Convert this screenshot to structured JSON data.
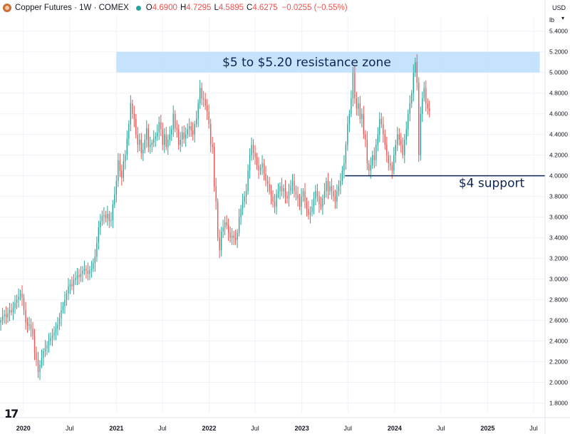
{
  "header": {
    "symbol": "Copper Futures",
    "interval": "1W",
    "exchange": "COMEX",
    "o_label": "O",
    "o": "4.6900",
    "h_label": "H",
    "h": "4.7295",
    "l_label": "L",
    "l": "4.5895",
    "c_label": "C",
    "c": "4.6275",
    "change": "−0.0255 (−0.55%)"
  },
  "currency": "USD",
  "unit": "lb",
  "colors": {
    "up": "#26a69a",
    "down": "#ef5350",
    "zone": "#bbdefb",
    "annotation": "#0d2556",
    "text": "#131722"
  },
  "chart_data": {
    "type": "candlestick",
    "title": "Copper Futures · 1W · COMEX",
    "ylim": [
      1.7,
      5.55
    ],
    "yticks": [
      1.8,
      2.0,
      2.2,
      2.4,
      2.6,
      2.8,
      3.0,
      3.2,
      3.4,
      3.6,
      3.8,
      4.0,
      4.2,
      4.4,
      4.6,
      4.8,
      5.0,
      5.2,
      5.4
    ],
    "ytick_labels": [
      "1.8000",
      "2.0000",
      "2.2000",
      "2.4000",
      "2.6000",
      "2.8000",
      "3.0000",
      "3.2000",
      "3.4000",
      "3.6000",
      "3.8000",
      "4.0000",
      "4.2000",
      "4.4000",
      "4.6000",
      "4.8000",
      "5.0000",
      "5.2000",
      "5.4000"
    ],
    "xlim": [
      "2019-10-01",
      "2025-08-15"
    ],
    "xticks": [
      {
        "date": "2020-01-01",
        "label": "2020",
        "bold": true
      },
      {
        "date": "2020-07-01",
        "label": "Jul",
        "bold": false
      },
      {
        "date": "2021-01-01",
        "label": "2021",
        "bold": true
      },
      {
        "date": "2021-07-01",
        "label": "Jul",
        "bold": false
      },
      {
        "date": "2022-01-01",
        "label": "2022",
        "bold": true
      },
      {
        "date": "2022-07-01",
        "label": "Jul",
        "bold": false
      },
      {
        "date": "2023-01-01",
        "label": "2023",
        "bold": true
      },
      {
        "date": "2023-07-01",
        "label": "Jul",
        "bold": false
      },
      {
        "date": "2024-01-01",
        "label": "2024",
        "bold": true
      },
      {
        "date": "2024-07-01",
        "label": "Jul",
        "bold": false
      },
      {
        "date": "2025-01-01",
        "label": "2025",
        "bold": true
      },
      {
        "date": "2025-07-01",
        "label": "Jul",
        "bold": false
      }
    ],
    "closes_weekly_start": "2019-10-04",
    "closes": [
      2.6,
      2.64,
      2.66,
      2.63,
      2.67,
      2.7,
      2.68,
      2.72,
      2.77,
      2.8,
      2.83,
      2.86,
      2.82,
      2.7,
      2.58,
      2.55,
      2.56,
      2.52,
      2.45,
      2.29,
      2.22,
      2.1,
      2.17,
      2.24,
      2.3,
      2.33,
      2.36,
      2.4,
      2.43,
      2.45,
      2.48,
      2.52,
      2.56,
      2.62,
      2.7,
      2.74,
      2.8,
      2.86,
      2.93,
      2.95,
      2.93,
      2.99,
      3.01,
      3.04,
      3.02,
      3.05,
      3.08,
      3.1,
      3.08,
      3.05,
      3.09,
      3.1,
      3.15,
      3.22,
      3.35,
      3.5,
      3.56,
      3.61,
      3.62,
      3.59,
      3.63,
      3.56,
      3.57,
      3.72,
      3.82,
      3.95,
      4.15,
      4.05,
      3.98,
      4.14,
      4.2,
      4.36,
      4.5,
      4.7,
      4.6,
      4.55,
      4.4,
      4.3,
      4.35,
      4.22,
      4.25,
      4.35,
      4.46,
      4.28,
      4.3,
      4.32,
      4.36,
      4.38,
      4.42,
      4.52,
      4.45,
      4.3,
      4.4,
      4.28,
      4.35,
      4.4,
      4.45,
      4.6,
      4.46,
      4.45,
      4.3,
      4.35,
      4.42,
      4.36,
      4.4,
      4.45,
      4.48,
      4.44,
      4.4,
      4.5,
      4.55,
      4.7,
      4.85,
      4.75,
      4.74,
      4.68,
      4.62,
      4.5,
      4.3,
      4.28,
      3.9,
      3.75,
      3.4,
      3.28,
      3.46,
      3.5,
      3.55,
      3.52,
      3.45,
      3.4,
      3.42,
      3.4,
      3.38,
      3.45,
      3.6,
      3.68,
      3.75,
      3.8,
      3.85,
      4.05,
      4.2,
      4.3,
      4.22,
      4.18,
      4.1,
      4.05,
      4.08,
      4.12,
      4.02,
      3.95,
      3.92,
      3.85,
      3.8,
      3.75,
      3.7,
      3.82,
      3.85,
      3.9,
      3.85,
      3.88,
      3.8,
      3.78,
      3.85,
      3.9,
      3.95,
      3.85,
      3.82,
      3.78,
      3.7,
      3.8,
      3.85,
      3.75,
      3.68,
      3.62,
      3.65,
      3.7,
      3.78,
      3.85,
      3.8,
      3.72,
      3.7,
      3.78,
      3.85,
      3.95,
      3.85,
      3.9,
      3.85,
      3.8,
      3.75,
      3.85,
      3.9,
      3.95,
      4.05,
      4.12,
      4.3,
      4.5,
      4.6,
      4.75,
      5.0,
      4.75,
      4.65,
      4.7,
      4.55,
      4.6,
      4.4,
      4.35,
      4.12,
      4.05,
      4.1,
      4.2,
      4.15,
      4.3,
      4.4,
      4.55,
      4.5,
      4.4,
      4.3,
      4.2,
      4.12,
      4.1,
      4.05,
      4.2,
      4.3,
      4.4,
      4.35,
      4.3,
      4.2,
      4.35,
      4.45,
      4.6,
      4.7,
      4.8,
      5.0,
      5.1,
      4.9,
      4.2,
      4.6,
      4.75,
      4.85,
      4.7,
      4.65,
      4.6275
    ],
    "annotations": [
      {
        "type": "zone",
        "from": 5.0,
        "to": 5.2,
        "x_from": "2021-01-01",
        "x_to": "2025-07-25",
        "label": "$5 to $5.20 resistance zone"
      },
      {
        "type": "hline",
        "y": 4.0,
        "x_from": "2023-06-20",
        "x_to": "2025-08-15",
        "label": "$4 support"
      }
    ]
  }
}
